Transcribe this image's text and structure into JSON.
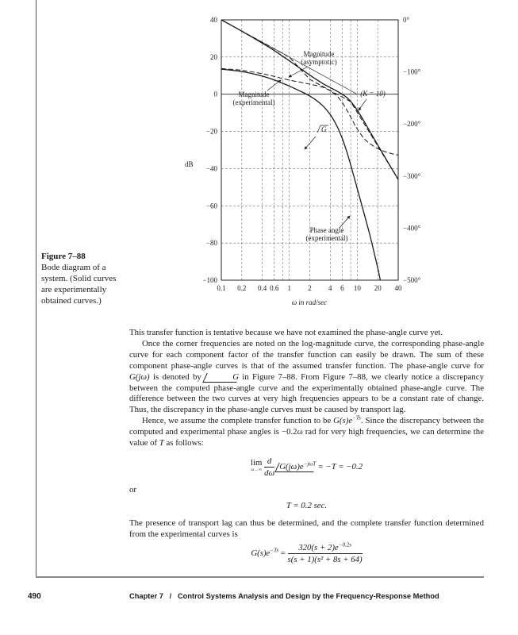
{
  "figure": {
    "caption_title": "Figure 7–88",
    "caption_text": "Bode diagram of a system. (Solid curves are experimentally obtained curves.)"
  },
  "chart_data": {
    "type": "line",
    "xscale": "log",
    "xlim": [
      0.1,
      40
    ],
    "ylim": [
      -100,
      40
    ],
    "y2lim": [
      -500,
      0
    ],
    "grid": true,
    "xlabel": "ω in rad/sec",
    "ylabel": "dB",
    "x_ticks": [
      "0.1",
      "0.2",
      "0.4",
      "0.6",
      "1",
      "2",
      "4",
      "6",
      "10",
      "20",
      "40"
    ],
    "x_tick_values": [
      0.1,
      0.2,
      0.4,
      0.6,
      1,
      2,
      4,
      6,
      10,
      20,
      40
    ],
    "x_grid_values": [
      0.2,
      0.4,
      0.6,
      0.8,
      1,
      2,
      4,
      6,
      8,
      10,
      20
    ],
    "y_ticks": [
      "40",
      "20",
      "0",
      "−20",
      "−40",
      "−60",
      "−80",
      "−100"
    ],
    "y_tick_values": [
      40,
      20,
      0,
      -20,
      -40,
      -60,
      -80,
      -100
    ],
    "y2_ticks": [
      "0°",
      "−100°",
      "−200°",
      "−300°",
      "−400°",
      "−500°"
    ],
    "y2_tick_values": [
      0,
      -100,
      -200,
      -300,
      -400,
      -500
    ],
    "series": [
      {
        "axis": "dB",
        "style": "thin",
        "x": [
          0.1,
          10
        ],
        "y": [
          40,
          0
        ]
      },
      {
        "axis": "dB",
        "style": "dashed",
        "x": [
          0.1,
          1,
          2,
          8,
          40
        ],
        "y": [
          40,
          20,
          8,
          -4,
          -45.9
        ]
      },
      {
        "axis": "dB",
        "style": "solid",
        "x": [
          0.1,
          0.2,
          0.4,
          0.6,
          1,
          2,
          3,
          4,
          5,
          6,
          7,
          8,
          9,
          10,
          12,
          14,
          20,
          30,
          40
        ],
        "y": [
          40,
          33.9,
          27.5,
          23.5,
          18.0,
          10.3,
          6.1,
          3.6,
          1.7,
          0.0,
          -1.8,
          -3.9,
          -6.2,
          -8.6,
          -13.3,
          -17.5,
          -27.3,
          -38.2,
          -45.8
        ]
      },
      {
        "axis": "deg",
        "style": "dashed",
        "x": [
          0.1,
          0.2,
          0.4,
          0.6,
          1,
          2,
          3,
          4,
          5,
          6,
          7,
          8,
          9,
          10,
          12,
          14,
          20,
          30,
          40
        ],
        "y": [
          -93.6,
          -97.0,
          -103.4,
          -108.6,
          -115.7,
          -123.4,
          -128.8,
          -136.2,
          -146.2,
          -158.7,
          -172.8,
          -186.9,
          -199.5,
          -209.8,
          -224.5,
          -233.7,
          -247.4,
          -255.9,
          -259.7
        ]
      },
      {
        "axis": "deg",
        "style": "solid",
        "x": [
          0.1,
          0.2,
          0.4,
          0.6,
          1,
          2,
          3,
          4,
          5,
          6,
          7,
          8,
          9,
          10,
          12,
          14,
          16,
          20,
          21,
          22
        ],
        "y": [
          -94.7,
          -99.3,
          -108.0,
          -115.5,
          -127.2,
          -146.3,
          -163.2,
          -182.0,
          -203.5,
          -227.5,
          -253.0,
          -278.6,
          -302.6,
          -324.4,
          -362.0,
          -394.1,
          -423.2,
          -476.6,
          -489.6,
          -502.6
        ]
      }
    ],
    "annotations": {
      "mag_asym_1": "Magnitude",
      "mag_asym_2": "(asymptotic)",
      "mag_exp_1": "Magnitude",
      "mag_exp_2": "(experimental)",
      "k_label": "(K = 10)",
      "angle_g": "G",
      "phase_exp_1": "Phase angle",
      "phase_exp_2": "(experimental)"
    }
  },
  "body": {
    "p1": "This transfer function is tentative because we have not examined the phase-angle curve yet.",
    "p2a": "Once the corner frequencies are noted on the log-magnitude curve, the corresponding phase-angle curve for each component factor of the transfer function can easily be drawn. The sum of these component phase-angle curves is that of the assumed transfer function. The phase-angle curve for ",
    "p2b": "G(jω)",
    "p2c": " is denoted by ",
    "p2d": "G",
    "p2e": " in Figure 7–88. From Figure 7–88, we clearly notice a discrepancy between the computed phase-angle curve and the experimentally obtained phase-angle curve. The difference between the two curves at very high frequencies appears to be a constant rate of change. Thus, the discrepancy in the phase-angle curves must be caused by transport lag.",
    "p3a": "Hence, we assume the complete transfer function to be ",
    "p3b": "G(s)e",
    "p3c": "−Ts",
    "p3d": ". Since the discrepancy between the computed and experimental phase angles is −0.2ω rad for very high frequencies, we can determine the value of ",
    "p3e": "T",
    "p3f": " as follows:",
    "eq1_lim": "lim",
    "eq1_sub": "ω→∞",
    "eq1_num": "d",
    "eq1_den": "dω",
    "eq1_ang": "G(jω)e",
    "eq1_sup": "−jωT",
    "eq1_rhs": " = −T = −0.2",
    "or": "or",
    "eq2": "T = 0.2 sec.",
    "p4": "The presence of transport lag can thus be determined, and the complete transfer function determined from the experimental curves is",
    "eq3_lhs": "G(s)e",
    "eq3_lhs_sup": "−Ts",
    "eq3_eq": " = ",
    "eq3_num": "320(s + 2)e",
    "eq3_num_sup": "−0.2s",
    "eq3_den": "s(s + 1)(s² + 8s + 64)"
  },
  "footer": {
    "page_number": "490",
    "chapter": "Chapter 7   /   Control Systems Analysis and Design by the Frequency-Response Method"
  }
}
